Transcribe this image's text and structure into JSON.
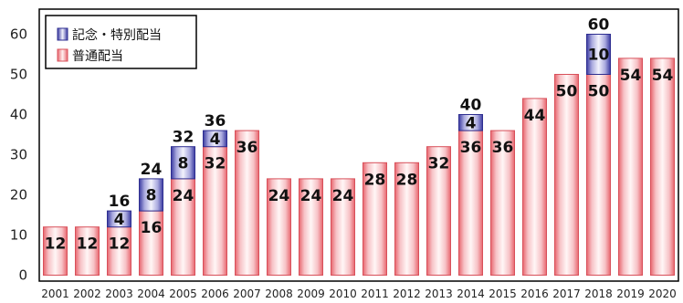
{
  "chart_data": {
    "type": "bar",
    "stacked": true,
    "categories": [
      "2001",
      "2002",
      "2003",
      "2004",
      "2005",
      "2006",
      "2007",
      "2008",
      "2009",
      "2010",
      "2011",
      "2012",
      "2013",
      "2014",
      "2015",
      "2016",
      "2017",
      "2018",
      "2019",
      "2020"
    ],
    "series": [
      {
        "name": "普通配当",
        "color": "#f08080",
        "values": [
          12,
          12,
          12,
          16,
          24,
          32,
          36,
          24,
          24,
          24,
          28,
          28,
          32,
          36,
          36,
          44,
          50,
          50,
          54,
          54
        ]
      },
      {
        "name": "記念・特別配当",
        "color": "#4a4ab0",
        "values": [
          0,
          0,
          4,
          8,
          8,
          4,
          0,
          0,
          0,
          0,
          0,
          0,
          0,
          4,
          0,
          0,
          0,
          10,
          0,
          0
        ]
      }
    ],
    "totals": [
      {
        "category": "2003",
        "value": 16
      },
      {
        "category": "2004",
        "value": 24
      },
      {
        "category": "2005",
        "value": 32
      },
      {
        "category": "2006",
        "value": 36
      },
      {
        "category": "2014",
        "value": 40
      },
      {
        "category": "2018",
        "value": 60
      }
    ],
    "title": "",
    "xlabel": "",
    "ylabel": "",
    "ylim": [
      0,
      65
    ],
    "yticks": [
      0,
      10,
      20,
      30,
      40,
      50,
      60
    ],
    "grid": false,
    "legend": {
      "placement": "top-left",
      "entries": [
        "記念・特別配当",
        "普通配当"
      ]
    }
  }
}
